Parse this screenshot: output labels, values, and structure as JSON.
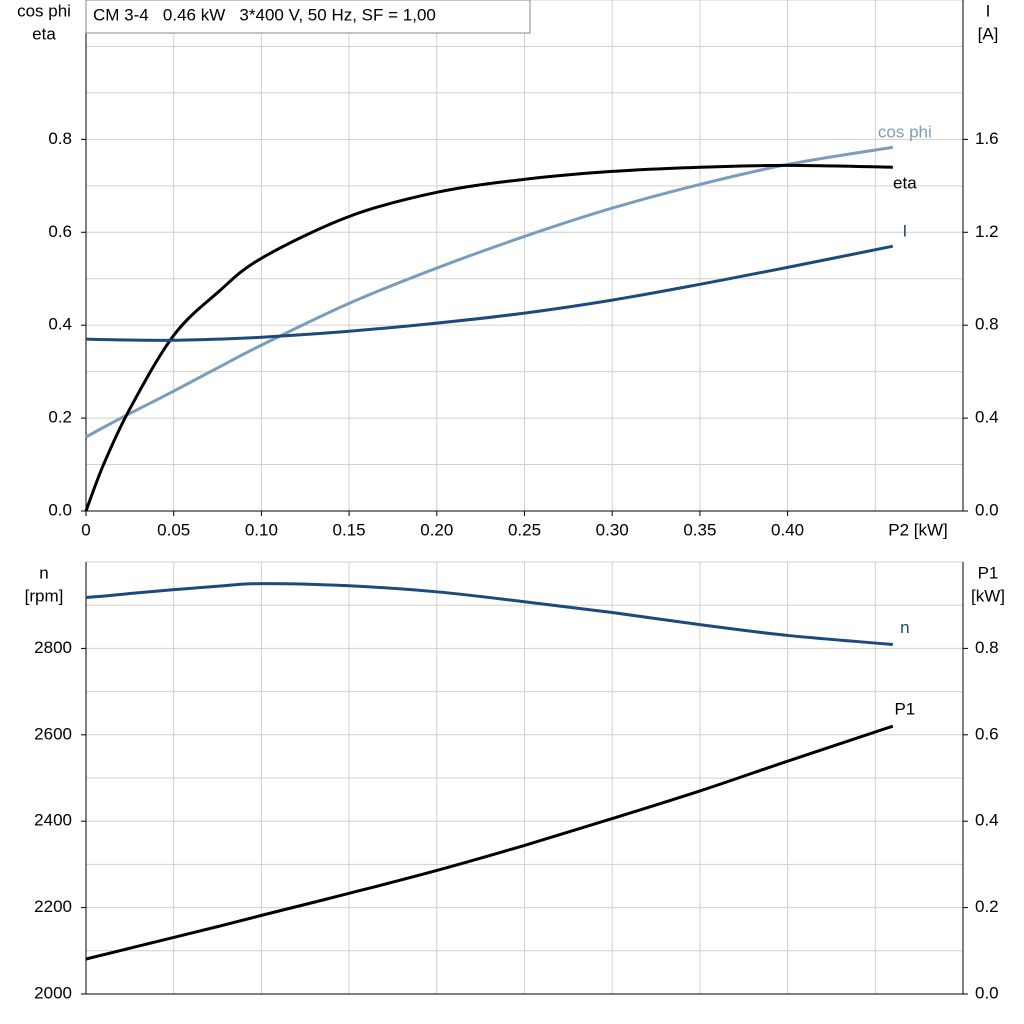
{
  "chart_data": [
    {
      "type": "line",
      "title": "CM 3-4   0.46 kW   3*400 V, 50 Hz, SF = 1,00",
      "x_label": "P2 [kW]",
      "y_label": [
        "cos phi",
        "eta"
      ],
      "y2_label": [
        "I",
        "[A]"
      ],
      "x": [
        0,
        0.01,
        0.025,
        0.05,
        0.075,
        0.1,
        0.15,
        0.2,
        0.25,
        0.3,
        0.35,
        0.4,
        0.46
      ],
      "xlim": [
        0,
        0.5
      ],
      "xticks": [
        0,
        0.05,
        {
          "value": 0.1,
          "label": "0.10"
        },
        0.15,
        {
          "value": 0.2,
          "label": "0.20"
        },
        0.25,
        {
          "value": 0.3,
          "label": "0.30"
        },
        0.35,
        {
          "value": 0.4,
          "label": "0.40"
        }
      ],
      "ylim": [
        0,
        1.1
      ],
      "yticks": [
        {
          "value": 0,
          "label": "0.0"
        },
        0.2,
        0.4,
        0.6,
        0.8
      ],
      "y2lim": [
        0,
        2.2
      ],
      "y2ticks": [
        {
          "value": 0,
          "label": "0.0"
        },
        0.4,
        0.8,
        1.2,
        1.6
      ],
      "grid": true,
      "series": [
        {
          "name": "cos phi",
          "color": "#7b9dbd",
          "values": [
            0.159,
            0.18,
            0.21,
            0.258,
            0.308,
            0.357,
            0.447,
            0.523,
            0.591,
            0.652,
            0.703,
            0.746,
            0.783
          ]
        },
        {
          "name": "eta",
          "color": "#000000",
          "values": [
            0,
            0.1,
            0.22,
            0.378,
            0.47,
            0.544,
            0.634,
            0.686,
            0.714,
            0.731,
            0.74,
            0.744,
            0.74
          ]
        },
        {
          "name": "I",
          "color": "#1b4b7b",
          "axis": "y2",
          "values": [
            0.74,
            0.738,
            0.736,
            0.735,
            0.74,
            0.748,
            0.774,
            0.809,
            0.852,
            0.908,
            0.976,
            1.049,
            1.14
          ]
        }
      ]
    },
    {
      "type": "line",
      "y_label": [
        "n",
        "[rpm]"
      ],
      "y2_label": [
        "P1",
        "[kW]"
      ],
      "x": [
        0,
        0.01,
        0.025,
        0.05,
        0.075,
        0.1,
        0.15,
        0.2,
        0.25,
        0.3,
        0.35,
        0.4,
        0.46
      ],
      "xlim": [
        0,
        0.5
      ],
      "ylim": [
        2000,
        3000
      ],
      "yticks": [
        2000,
        2200,
        2400,
        2600,
        2800
      ],
      "y2lim": [
        0,
        1
      ],
      "y2ticks": [
        {
          "value": 0,
          "label": "0.0"
        },
        0.2,
        0.4,
        0.6,
        0.8
      ],
      "grid": true,
      "series": [
        {
          "name": "n",
          "color": "#1b4b7b",
          "values": [
            2918,
            2921,
            2927,
            2936,
            2944,
            2950,
            2945,
            2931,
            2908,
            2883,
            2855,
            2830,
            2809
          ]
        },
        {
          "name": "P1",
          "color": "#000000",
          "axis": "y2",
          "values": [
            0.081,
            0.091,
            0.106,
            0.131,
            0.156,
            0.182,
            0.233,
            0.286,
            0.344,
            0.406,
            0.47,
            0.539,
            0.62
          ]
        }
      ]
    }
  ]
}
